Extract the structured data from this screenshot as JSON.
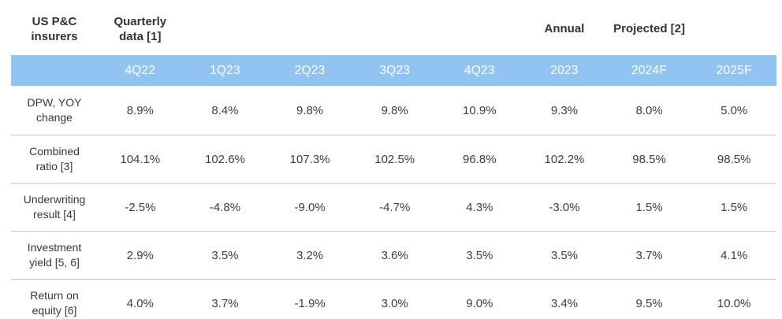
{
  "header": {
    "corner_label": "US P&C insurers",
    "quarterly_group_label": "Quarterly data [1]",
    "annual_group_label": "Annual",
    "projected_group_label": "Projected [2]"
  },
  "colors": {
    "band_background": "#92c4f2",
    "band_text": "#ffffff",
    "body_text": "#3a3a3a",
    "divider": "#c9c9c9"
  },
  "chart_data": {
    "type": "table",
    "title": "US P&C insurers",
    "column_groups": [
      {
        "label": "Quarterly data [1]",
        "columns": [
          "4Q22",
          "1Q23",
          "2Q23",
          "3Q23",
          "4Q23"
        ]
      },
      {
        "label": "Annual",
        "columns": [
          "2023"
        ]
      },
      {
        "label": "Projected [2]",
        "columns": [
          "2024F",
          "2025F"
        ]
      }
    ],
    "columns": [
      "4Q22",
      "1Q23",
      "2Q23",
      "3Q23",
      "4Q23",
      "2023",
      "2024F",
      "2025F"
    ],
    "rows": [
      {
        "label": "DPW, YOY change",
        "values": [
          "8.9%",
          "8.4%",
          "9.8%",
          "9.8%",
          "10.9%",
          "9.3%",
          "8.0%",
          "5.0%"
        ]
      },
      {
        "label": "Combined ratio [3]",
        "values": [
          "104.1%",
          "102.6%",
          "107.3%",
          "102.5%",
          "96.8%",
          "102.2%",
          "98.5%",
          "98.5%"
        ]
      },
      {
        "label": "Underwriting result [4]",
        "values": [
          "-2.5%",
          "-4.8%",
          "-9.0%",
          "-4.7%",
          "4.3%",
          "-3.0%",
          "1.5%",
          "1.5%"
        ]
      },
      {
        "label": "Investment yield [5, 6]",
        "values": [
          "2.9%",
          "3.5%",
          "3.2%",
          "3.6%",
          "3.5%",
          "3.5%",
          "3.7%",
          "4.1%"
        ]
      },
      {
        "label": "Return on equity [6]",
        "values": [
          "4.0%",
          "3.7%",
          "-1.9%",
          "3.0%",
          "9.0%",
          "3.4%",
          "9.5%",
          "10.0%"
        ]
      }
    ]
  }
}
